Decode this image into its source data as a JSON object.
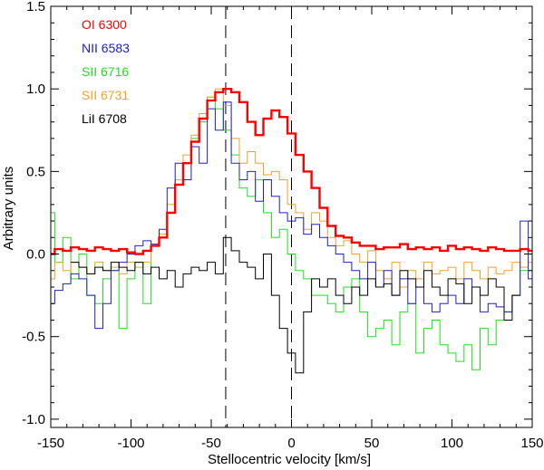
{
  "chart_data": {
    "type": "line",
    "line_style": "step",
    "title": "",
    "xlabel": "Stellocentric velocity [km/s]",
    "ylabel": "Arbitrary units",
    "xlim": [
      -150,
      150
    ],
    "ylim": [
      -1.05,
      1.5
    ],
    "x_ticks": [
      -150,
      -100,
      -50,
      0,
      50,
      100,
      150
    ],
    "x_tick_labels": [
      "-150",
      "-100",
      "-50",
      "0",
      "50",
      "100",
      "150"
    ],
    "y_ticks": [
      -1.0,
      -0.5,
      0.0,
      0.5,
      1.0,
      1.5
    ],
    "y_tick_labels": [
      "-1.0",
      "-0.5",
      "0.0",
      "0.5",
      "1.0",
      "1.5"
    ],
    "grid": false,
    "legend_position": "top-left",
    "vertical_reference_lines": [
      -41,
      0
    ],
    "series": [
      {
        "name": "OI 6300",
        "color": "#ff0000",
        "x": [
          -150,
          -145,
          -140,
          -135,
          -130,
          -125,
          -120,
          -115,
          -110,
          -105,
          -100,
          -95,
          -90,
          -85,
          -80,
          -75,
          -70,
          -65,
          -60,
          -55,
          -50,
          -45,
          -40,
          -35,
          -30,
          -25,
          -20,
          -15,
          -10,
          -5,
          0,
          5,
          10,
          15,
          20,
          25,
          30,
          35,
          40,
          45,
          50,
          55,
          60,
          65,
          70,
          75,
          80,
          85,
          90,
          95,
          100,
          105,
          110,
          115,
          120,
          125,
          130,
          135,
          140,
          145,
          150
        ],
        "values": [
          0.0,
          0.03,
          0.02,
          0.04,
          0.03,
          0.02,
          0.04,
          0.03,
          0.02,
          0.03,
          0.01,
          0.0,
          0.02,
          0.05,
          0.1,
          0.25,
          0.42,
          0.55,
          0.68,
          0.82,
          0.93,
          0.98,
          1.0,
          0.98,
          0.92,
          0.8,
          0.72,
          0.82,
          0.87,
          0.83,
          0.73,
          0.6,
          0.5,
          0.4,
          0.28,
          0.17,
          0.11,
          0.1,
          0.07,
          0.05,
          0.05,
          0.03,
          0.04,
          0.04,
          0.06,
          0.03,
          0.04,
          0.03,
          0.04,
          0.02,
          0.05,
          0.03,
          0.04,
          0.03,
          0.02,
          0.04,
          0.03,
          0.02,
          0.02,
          0.03,
          0.02
        ]
      },
      {
        "name": "NII 6583",
        "color": "#2020c0",
        "x": [
          -150,
          -145,
          -140,
          -135,
          -130,
          -125,
          -120,
          -115,
          -110,
          -105,
          -100,
          -95,
          -90,
          -85,
          -80,
          -75,
          -70,
          -65,
          -60,
          -55,
          -50,
          -45,
          -40,
          -35,
          -30,
          -25,
          -20,
          -15,
          -10,
          -5,
          0,
          5,
          10,
          15,
          20,
          25,
          30,
          35,
          40,
          45,
          50,
          55,
          60,
          65,
          70,
          75,
          80,
          85,
          90,
          95,
          100,
          105,
          110,
          115,
          120,
          125,
          130,
          135,
          140,
          145,
          150
        ],
        "values": [
          -0.3,
          -0.22,
          -0.18,
          -0.12,
          -0.15,
          -0.25,
          -0.45,
          -0.3,
          -0.1,
          -0.05,
          0.0,
          0.05,
          0.08,
          0.06,
          0.15,
          0.4,
          0.55,
          0.45,
          0.65,
          0.55,
          0.88,
          0.75,
          0.92,
          0.55,
          0.45,
          0.5,
          0.32,
          0.45,
          0.35,
          0.25,
          0.2,
          0.22,
          0.12,
          0.18,
          0.1,
          0.05,
          0.0,
          -0.05,
          -0.1,
          -0.15,
          -0.05,
          -0.2,
          -0.1,
          -0.25,
          -0.15,
          -0.3,
          -0.2,
          -0.3,
          -0.35,
          -0.3,
          -0.25,
          -0.3,
          -0.15,
          -0.2,
          -0.35,
          -0.3,
          -0.32,
          -0.35,
          -0.25,
          0.2,
          -0.15
        ]
      },
      {
        "name": "SII 6716",
        "color": "#22dd22",
        "x": [
          -150,
          -145,
          -140,
          -135,
          -130,
          -125,
          -120,
          -115,
          -110,
          -105,
          -100,
          -95,
          -90,
          -85,
          -80,
          -75,
          -70,
          -65,
          -60,
          -55,
          -50,
          -45,
          -40,
          -35,
          -30,
          -25,
          -20,
          -15,
          -10,
          -5,
          0,
          5,
          10,
          15,
          20,
          25,
          30,
          35,
          40,
          45,
          50,
          55,
          60,
          65,
          70,
          75,
          80,
          85,
          90,
          95,
          100,
          105,
          110,
          115,
          120,
          125,
          130,
          135,
          140,
          145,
          150
        ],
        "values": [
          0.25,
          -0.05,
          0.1,
          -0.15,
          0.0,
          -0.25,
          -0.3,
          -0.15,
          -0.1,
          -0.45,
          -0.15,
          -0.05,
          -0.3,
          0.05,
          0.1,
          0.25,
          0.45,
          0.55,
          0.7,
          0.8,
          0.95,
          0.88,
          0.75,
          0.6,
          0.4,
          0.35,
          0.45,
          0.25,
          0.1,
          0.15,
          0.0,
          -0.1,
          -0.15,
          -0.25,
          -0.25,
          -0.3,
          -0.35,
          -0.2,
          -0.15,
          -0.35,
          -0.5,
          -0.45,
          -0.4,
          -0.55,
          -0.35,
          -0.3,
          -0.6,
          -0.45,
          -0.4,
          -0.55,
          -0.6,
          -0.65,
          -0.55,
          -0.7,
          -0.45,
          -0.55,
          -0.4,
          -0.35,
          -0.25,
          -0.1,
          -0.1
        ]
      },
      {
        "name": "SII 6731",
        "color": "#f0a030",
        "x": [
          -150,
          -145,
          -140,
          -135,
          -130,
          -125,
          -120,
          -115,
          -110,
          -105,
          -100,
          -95,
          -90,
          -85,
          -80,
          -75,
          -70,
          -65,
          -60,
          -55,
          -50,
          -45,
          -40,
          -35,
          -30,
          -25,
          -20,
          -15,
          -10,
          -5,
          0,
          5,
          10,
          15,
          20,
          25,
          30,
          35,
          40,
          45,
          50,
          55,
          60,
          65,
          70,
          75,
          80,
          85,
          90,
          95,
          100,
          105,
          110,
          115,
          120,
          125,
          130,
          135,
          140,
          145,
          150
        ],
        "values": [
          -0.15,
          -0.05,
          -0.1,
          -0.05,
          -0.08,
          -0.12,
          -0.05,
          -0.1,
          -0.08,
          -0.12,
          -0.05,
          -0.08,
          -0.05,
          0.05,
          0.12,
          0.3,
          0.45,
          0.6,
          0.72,
          0.85,
          0.95,
          1.0,
          0.9,
          0.7,
          0.55,
          0.62,
          0.55,
          0.48,
          0.5,
          0.45,
          0.3,
          0.25,
          0.15,
          0.25,
          0.2,
          0.1,
          0.05,
          0.08,
          0.0,
          -0.05,
          0.02,
          -0.1,
          -0.15,
          -0.05,
          -0.2,
          -0.1,
          -0.15,
          -0.05,
          -0.12,
          -0.1,
          -0.08,
          -0.15,
          -0.05,
          -0.1,
          -0.15,
          -0.08,
          -0.12,
          -0.1,
          -0.05,
          -0.08,
          -0.05
        ]
      },
      {
        "name": "LiI 6708",
        "color": "#000000",
        "x": [
          -135,
          -130,
          -125,
          -120,
          -115,
          -110,
          -105,
          -100,
          -95,
          -90,
          -85,
          -80,
          -75,
          -70,
          -65,
          -60,
          -55,
          -50,
          -45,
          -40,
          -35,
          -30,
          -25,
          -20,
          -15,
          -10,
          -5,
          0,
          5,
          10,
          15,
          20,
          25,
          30,
          35,
          40,
          45,
          50,
          55,
          60,
          65,
          70,
          75,
          80,
          85,
          90,
          95,
          100,
          105,
          110,
          115,
          120,
          125,
          130,
          135,
          140
        ],
        "values": [
          -0.05,
          -0.08,
          -0.12,
          -0.08,
          -0.1,
          -0.05,
          -0.08,
          -0.1,
          -0.05,
          -0.12,
          -0.08,
          -0.15,
          -0.1,
          -0.2,
          -0.12,
          -0.08,
          -0.1,
          -0.05,
          -0.12,
          0.1,
          0.02,
          -0.05,
          -0.08,
          -0.15,
          0.0,
          -0.25,
          -0.45,
          -0.6,
          -0.72,
          -0.35,
          -0.15,
          -0.2,
          -0.15,
          -0.25,
          -0.3,
          -0.2,
          -0.25,
          -0.15,
          -0.2,
          -0.18,
          -0.25,
          -0.1,
          -0.15,
          -0.2,
          -0.1,
          -0.2,
          -0.25,
          -0.15,
          -0.18,
          -0.3,
          -0.2,
          -0.25,
          -0.15,
          -0.2,
          -0.4,
          -0.25
        ]
      }
    ]
  }
}
